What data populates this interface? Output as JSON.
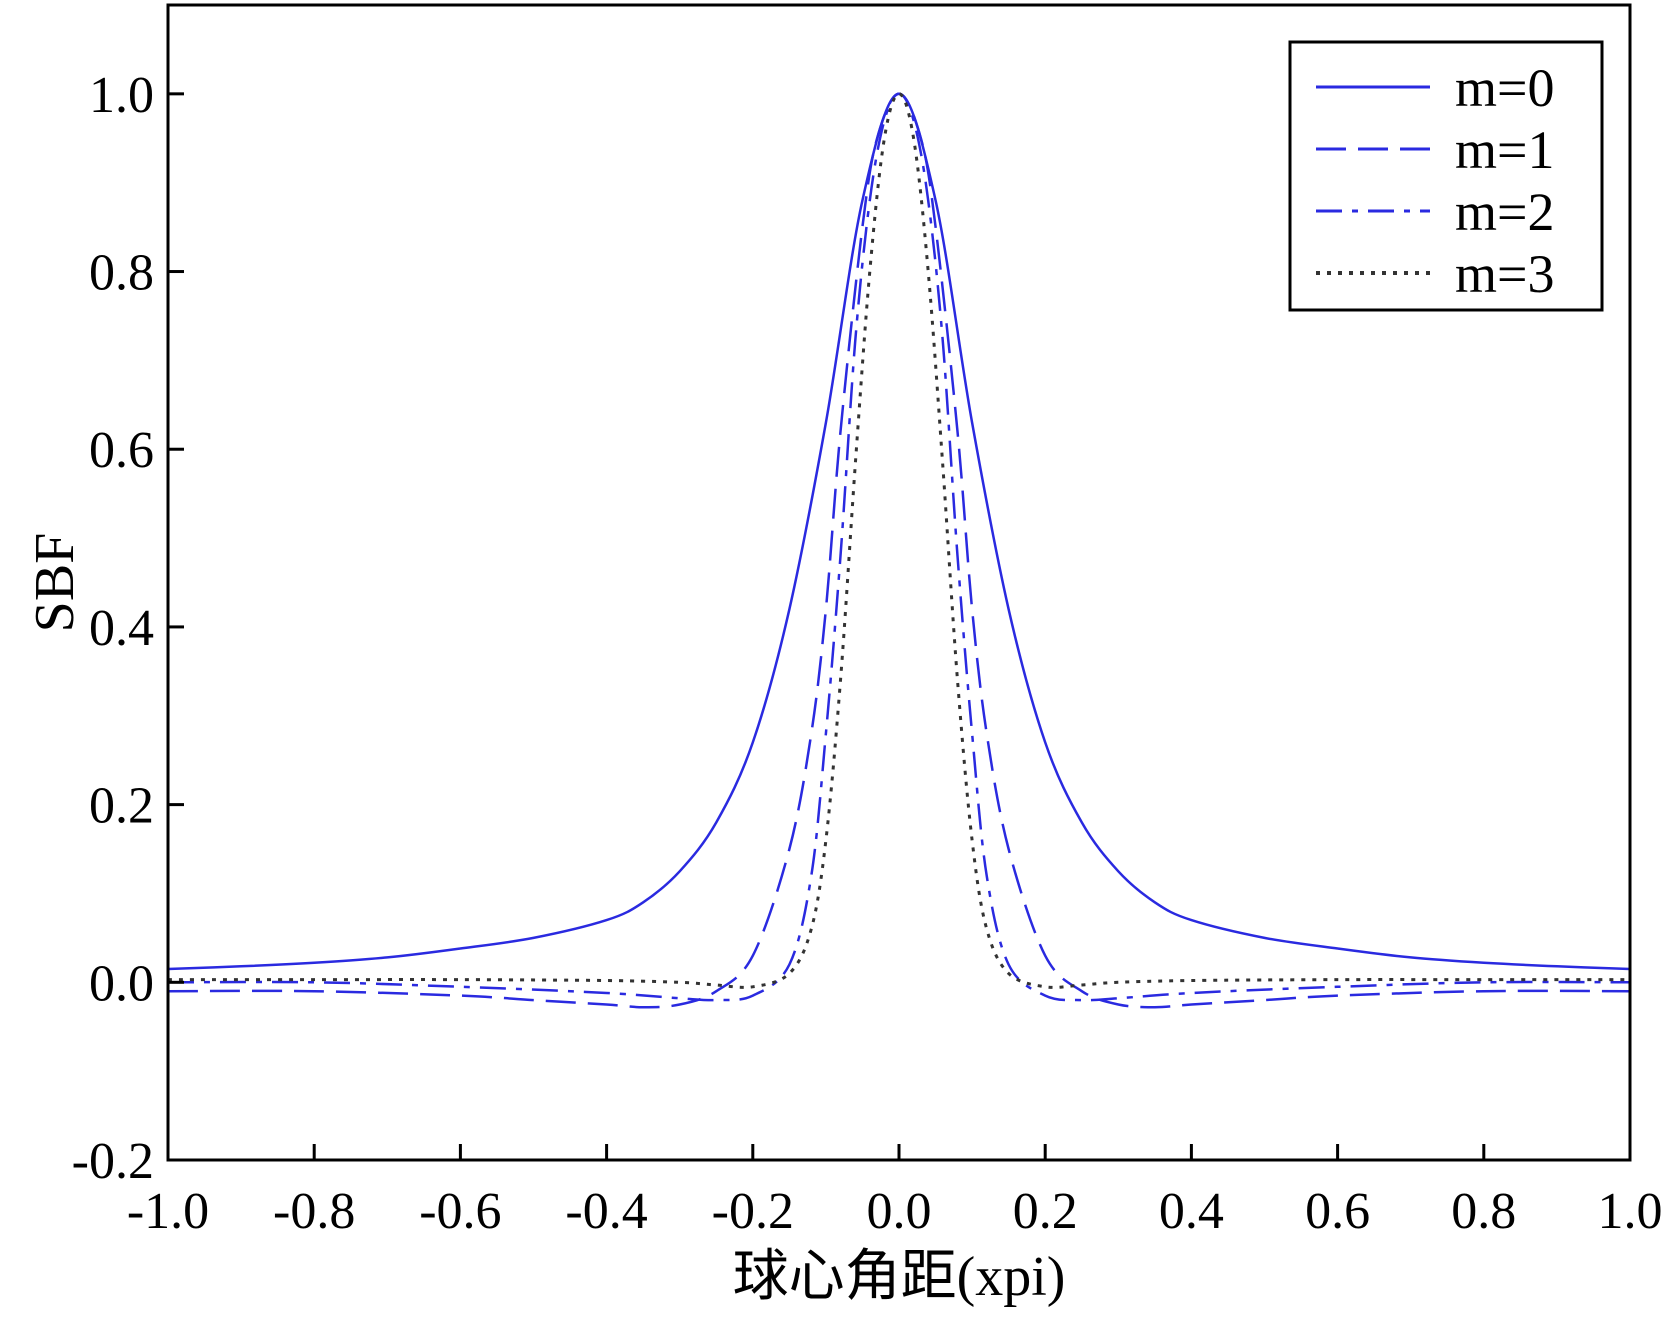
{
  "chart_data": {
    "type": "line",
    "xlabel": "球心角距(xpi)",
    "ylabel": "SBF",
    "xlim": [
      -1.0,
      1.0
    ],
    "ylim": [
      -0.2,
      1.1
    ],
    "xticks": [
      "-1.0",
      "-0.8",
      "-0.6",
      "-0.4",
      "-0.2",
      "0.0",
      "0.2",
      "0.4",
      "0.6",
      "0.8",
      "1.0"
    ],
    "yticks": [
      "-0.2",
      "0.0",
      "0.2",
      "0.4",
      "0.6",
      "0.8",
      "1.0"
    ],
    "grid": false,
    "legend_position": "top-right",
    "line_color": "#2a2ae0",
    "series": [
      {
        "name": "m=0",
        "style": "solid",
        "x": [
          -1.0,
          -0.9,
          -0.8,
          -0.7,
          -0.6,
          -0.5,
          -0.4,
          -0.35,
          -0.3,
          -0.25,
          -0.2,
          -0.15,
          -0.1,
          -0.05,
          0.0,
          0.05,
          0.1,
          0.15,
          0.2,
          0.25,
          0.3,
          0.35,
          0.4,
          0.5,
          0.6,
          0.7,
          0.8,
          0.9,
          1.0
        ],
        "values": [
          0.015,
          0.018,
          0.022,
          0.028,
          0.038,
          0.05,
          0.07,
          0.09,
          0.125,
          0.18,
          0.27,
          0.42,
          0.63,
          0.88,
          1.0,
          0.88,
          0.63,
          0.42,
          0.27,
          0.18,
          0.125,
          0.09,
          0.07,
          0.05,
          0.038,
          0.028,
          0.022,
          0.018,
          0.015
        ]
      },
      {
        "name": "m=1",
        "style": "dashed",
        "x": [
          -1.0,
          -0.8,
          -0.6,
          -0.5,
          -0.4,
          -0.35,
          -0.3,
          -0.25,
          -0.2,
          -0.15,
          -0.12,
          -0.1,
          -0.08,
          -0.05,
          -0.03,
          0.0,
          0.03,
          0.05,
          0.08,
          0.1,
          0.12,
          0.15,
          0.2,
          0.25,
          0.3,
          0.35,
          0.4,
          0.5,
          0.6,
          0.8,
          1.0
        ],
        "values": [
          -0.01,
          -0.01,
          -0.015,
          -0.02,
          -0.025,
          -0.028,
          -0.025,
          -0.01,
          0.03,
          0.15,
          0.28,
          0.42,
          0.62,
          0.85,
          0.95,
          1.0,
          0.95,
          0.85,
          0.62,
          0.42,
          0.28,
          0.15,
          0.03,
          -0.01,
          -0.025,
          -0.028,
          -0.025,
          -0.02,
          -0.015,
          -0.01,
          -0.01
        ]
      },
      {
        "name": "m=2",
        "style": "dashdot",
        "x": [
          -1.0,
          -0.8,
          -0.6,
          -0.4,
          -0.3,
          -0.25,
          -0.2,
          -0.15,
          -0.12,
          -0.1,
          -0.08,
          -0.06,
          -0.04,
          -0.02,
          0.0,
          0.02,
          0.04,
          0.06,
          0.08,
          0.1,
          0.12,
          0.15,
          0.2,
          0.25,
          0.3,
          0.4,
          0.6,
          0.8,
          1.0
        ],
        "values": [
          0.0,
          0.0,
          -0.005,
          -0.012,
          -0.018,
          -0.02,
          -0.015,
          0.02,
          0.12,
          0.28,
          0.48,
          0.72,
          0.88,
          0.97,
          1.0,
          0.97,
          0.88,
          0.72,
          0.48,
          0.28,
          0.12,
          0.02,
          -0.015,
          -0.02,
          -0.018,
          -0.012,
          -0.005,
          0.0,
          0.0
        ]
      },
      {
        "name": "m=3",
        "style": "dotted",
        "x": [
          -1.0,
          -0.8,
          -0.6,
          -0.4,
          -0.3,
          -0.25,
          -0.2,
          -0.15,
          -0.12,
          -0.1,
          -0.08,
          -0.06,
          -0.04,
          -0.02,
          0.0,
          0.02,
          0.04,
          0.06,
          0.08,
          0.1,
          0.12,
          0.15,
          0.2,
          0.25,
          0.3,
          0.4,
          0.6,
          0.8,
          1.0
        ],
        "values": [
          0.003,
          0.003,
          0.003,
          0.002,
          0.0,
          -0.003,
          -0.005,
          0.01,
          0.06,
          0.16,
          0.34,
          0.58,
          0.8,
          0.95,
          1.0,
          0.95,
          0.8,
          0.58,
          0.34,
          0.16,
          0.06,
          0.01,
          -0.005,
          -0.003,
          0.0,
          0.002,
          0.003,
          0.003,
          0.003
        ]
      }
    ]
  }
}
